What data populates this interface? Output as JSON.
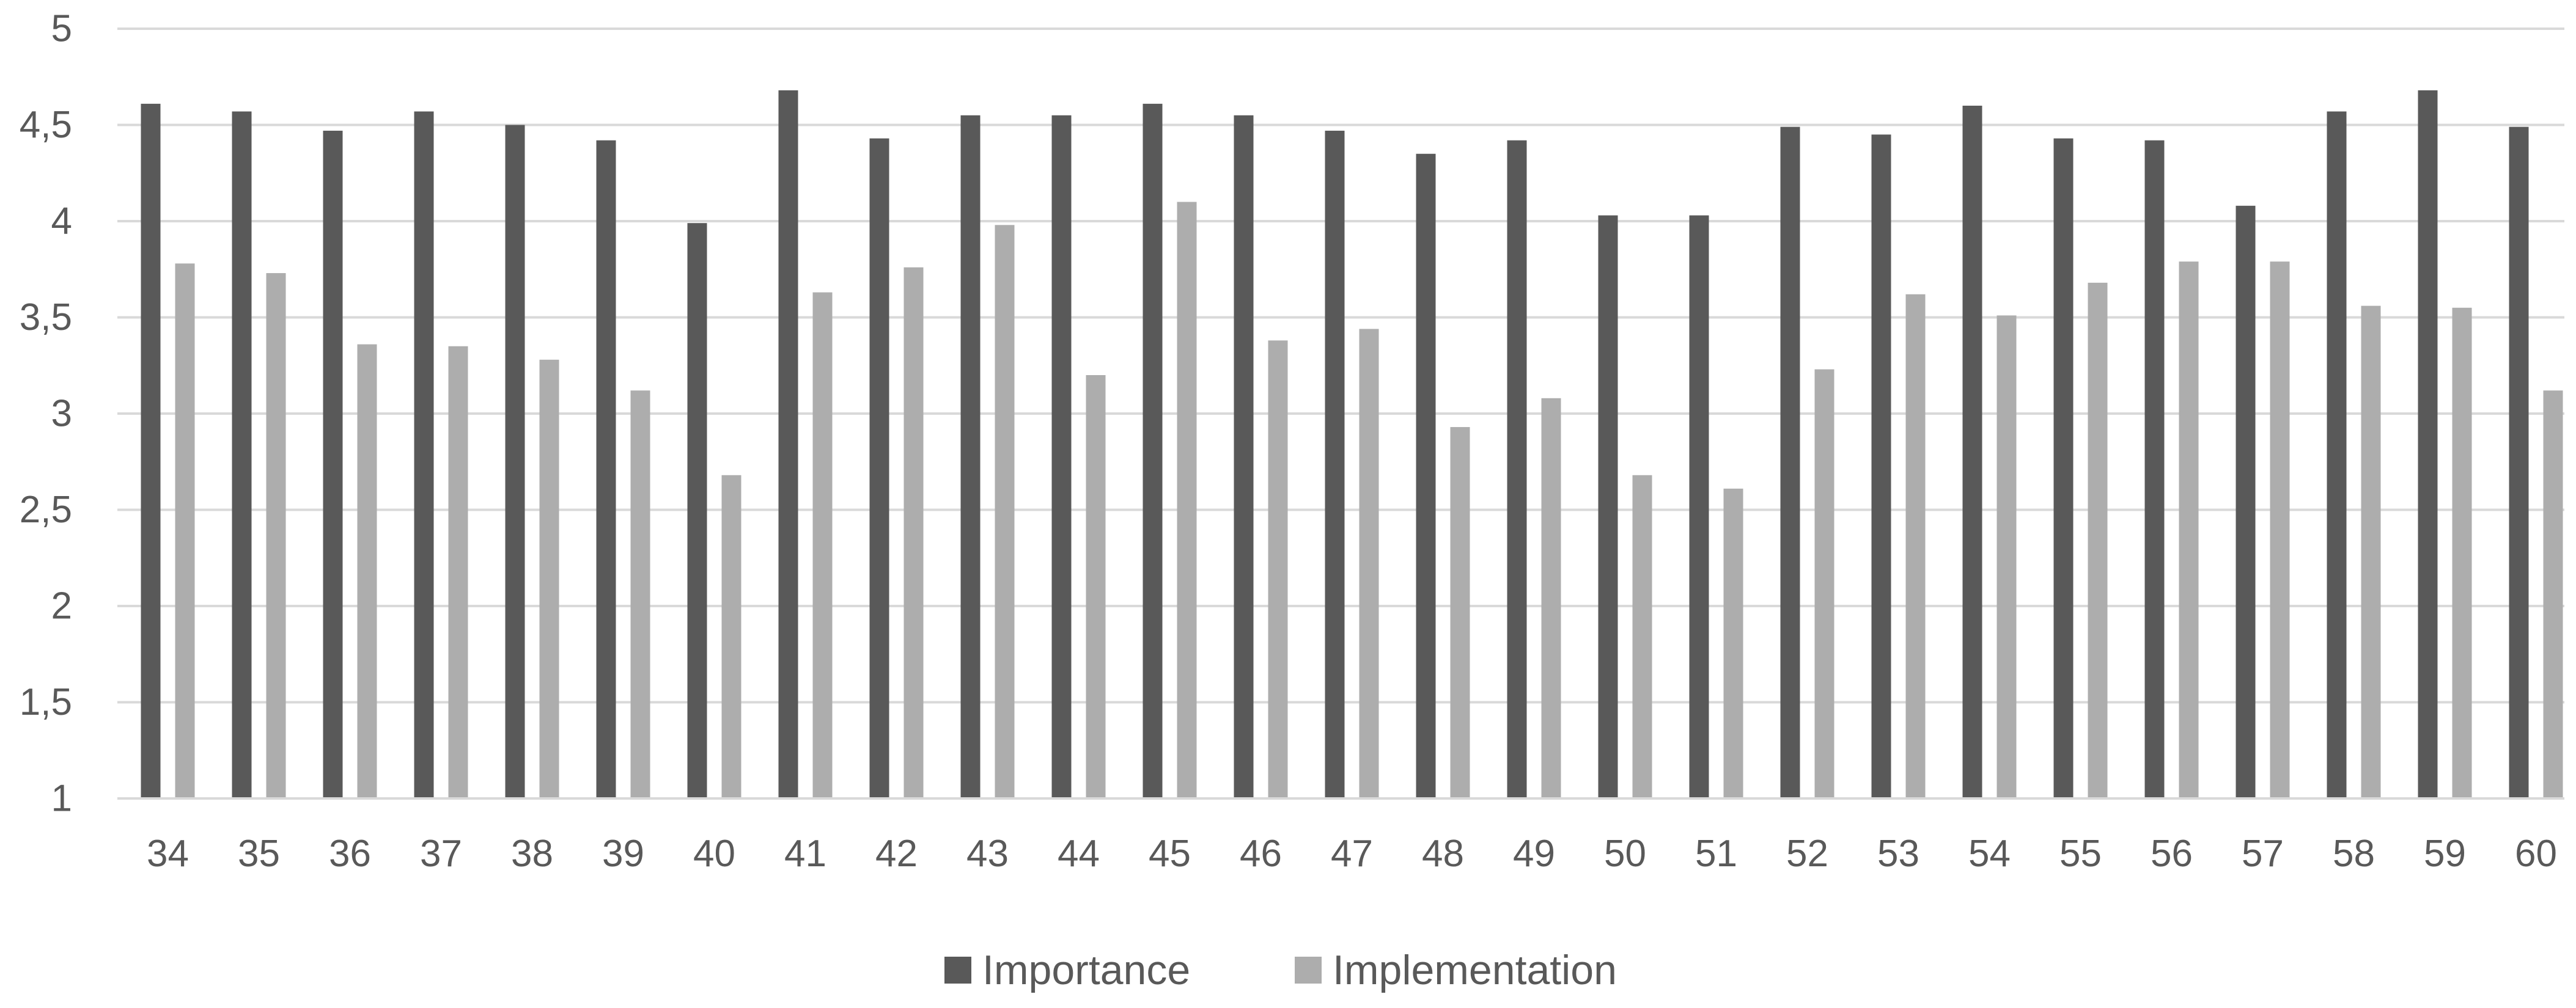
{
  "chart_data": {
    "type": "bar",
    "title": "",
    "xlabel": "",
    "ylabel": "",
    "categories": [
      "34",
      "35",
      "36",
      "37",
      "38",
      "39",
      "40",
      "41",
      "42",
      "43",
      "44",
      "45",
      "46",
      "47",
      "48",
      "49",
      "50",
      "51",
      "52",
      "53",
      "54",
      "55",
      "56",
      "57",
      "58",
      "59",
      "60"
    ],
    "series": [
      {
        "name": "Importance",
        "color": "#595959",
        "values": [
          4.61,
          4.57,
          4.47,
          4.57,
          4.5,
          4.42,
          3.99,
          4.68,
          4.43,
          4.55,
          4.55,
          4.61,
          4.55,
          4.47,
          4.35,
          4.42,
          4.03,
          4.03,
          4.49,
          4.45,
          4.6,
          4.43,
          4.42,
          4.08,
          4.57,
          4.68,
          4.49
        ]
      },
      {
        "name": "Implementation",
        "color": "#adadad",
        "values": [
          3.78,
          3.73,
          3.36,
          3.35,
          3.28,
          3.12,
          2.68,
          3.63,
          3.76,
          3.98,
          3.2,
          4.1,
          3.38,
          3.44,
          2.93,
          3.08,
          2.68,
          2.61,
          3.23,
          3.62,
          3.51,
          3.68,
          3.79,
          3.79,
          3.56,
          3.55,
          3.12
        ]
      }
    ],
    "ylim": [
      1,
      5
    ],
    "yticks": [
      1,
      1.5,
      2,
      2.5,
      3,
      3.5,
      4,
      4.5,
      5
    ],
    "ytick_labels": [
      "1",
      "1,5",
      "2",
      "2,5",
      "3",
      "3,5",
      "4",
      "4,5",
      "5"
    ],
    "grid": true,
    "legend_position": "bottom-center"
  }
}
